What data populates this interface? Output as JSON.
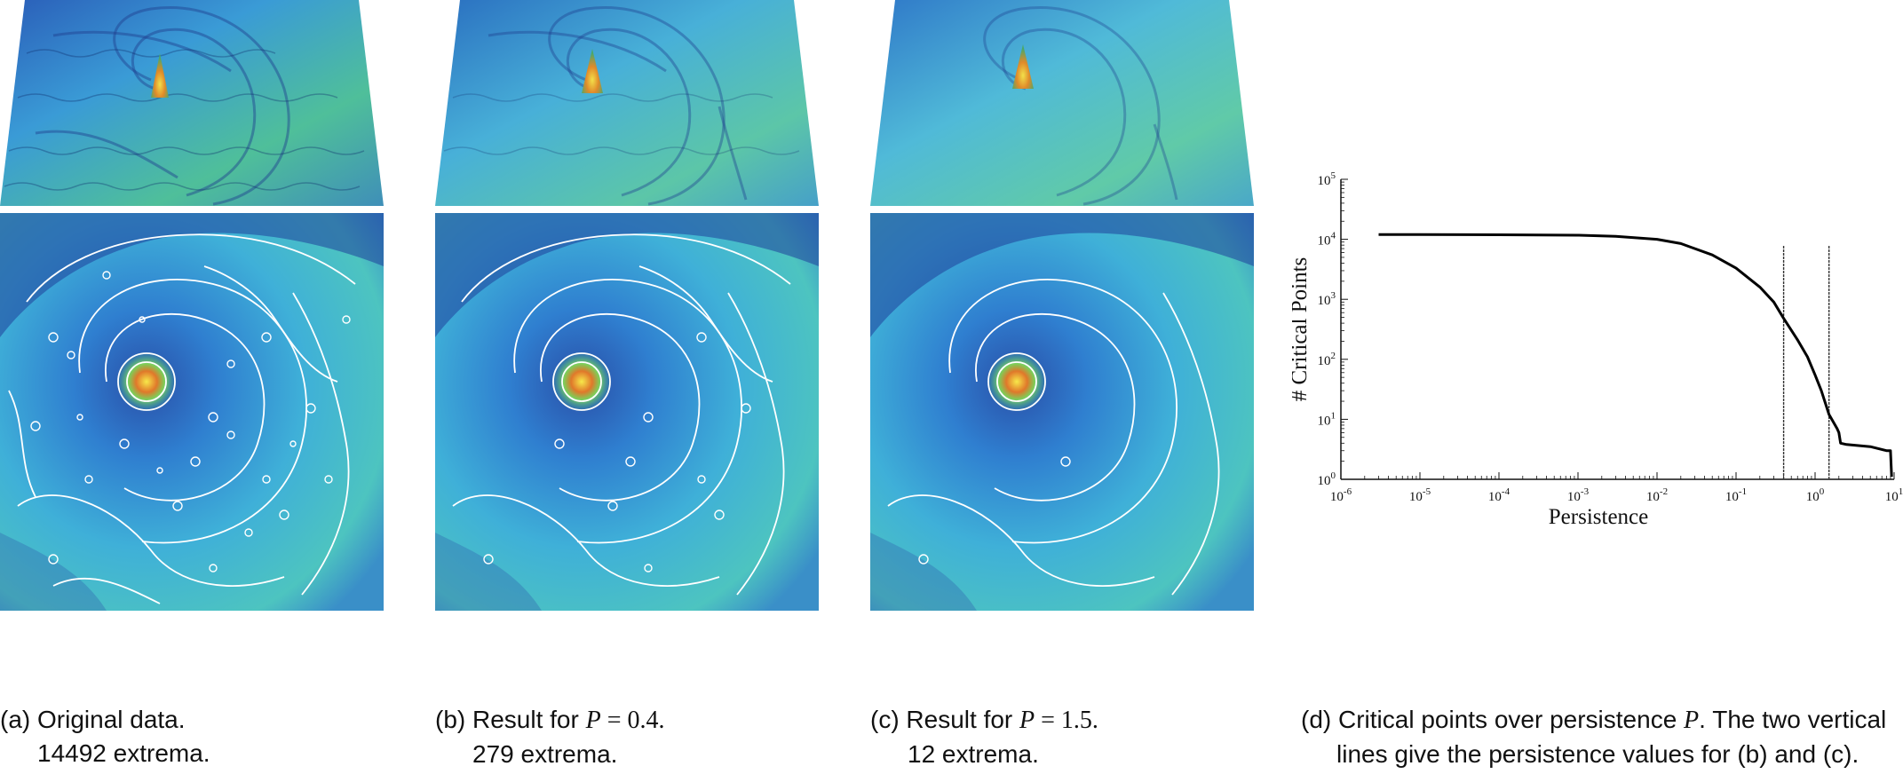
{
  "panels": [
    {
      "id": "a",
      "caption_prefix": "(a) Original data.",
      "caption_math": "",
      "caption_line2": "14492 extrema."
    },
    {
      "id": "b",
      "caption_prefix": "(b) Result for ",
      "caption_var": "P",
      "caption_eq": " = 0.4.",
      "caption_line2": "279 extrema."
    },
    {
      "id": "c",
      "caption_prefix": "(c) Result for ",
      "caption_var": "P",
      "caption_eq": " = 1.5.",
      "caption_line2": "12 extrema."
    }
  ],
  "caption_d": {
    "line1_prefix": "(d) Critical points over persistence ",
    "line1_var": "P",
    "line1_suffix": ". The two vertical",
    "line2": "lines give the persistence values for (b) and (c)."
  },
  "colors": {
    "deep_blue": "#1f3f9a",
    "mid_blue": "#2f7fd0",
    "cyan": "#3fb6d8",
    "teal_green": "#5fc8a8",
    "peak_yellow": "#f2e04a",
    "peak_red": "#d84a2a",
    "contour": "#ffffff"
  },
  "chart_data": {
    "type": "line",
    "xlabel": "Persistence",
    "ylabel": "# Critical Points",
    "xscale": "log",
    "yscale": "log",
    "xlim": [
      1e-06,
      10
    ],
    "ylim": [
      1,
      100000
    ],
    "xticks": [
      {
        "exp": "-6"
      },
      {
        "exp": "-5"
      },
      {
        "exp": "-4"
      },
      {
        "exp": "-3"
      },
      {
        "exp": "-2"
      },
      {
        "exp": "-1"
      },
      {
        "exp": "0"
      },
      {
        "exp": "1"
      }
    ],
    "yticks": [
      {
        "exp": "0"
      },
      {
        "exp": "1"
      },
      {
        "exp": "2"
      },
      {
        "exp": "3"
      },
      {
        "exp": "4"
      },
      {
        "exp": "5"
      }
    ],
    "tick_base": "10",
    "series": [
      {
        "x": [
          3e-06,
          1e-05,
          0.0001,
          0.001,
          0.003,
          0.01,
          0.02,
          0.05,
          0.1,
          0.2,
          0.3,
          0.4,
          0.6,
          0.8,
          1.0,
          1.2,
          1.5,
          1.9,
          2.0,
          2.1,
          2.5,
          5,
          8,
          9,
          9.3
        ],
        "y": [
          12000,
          12000,
          11900,
          11700,
          11200,
          10000,
          8500,
          5500,
          3300,
          1600,
          900,
          480,
          210,
          110,
          55,
          30,
          12,
          7,
          6,
          4,
          3.8,
          3.5,
          3,
          3,
          1.1
        ]
      }
    ],
    "vlines": [
      0.4,
      1.5
    ]
  }
}
